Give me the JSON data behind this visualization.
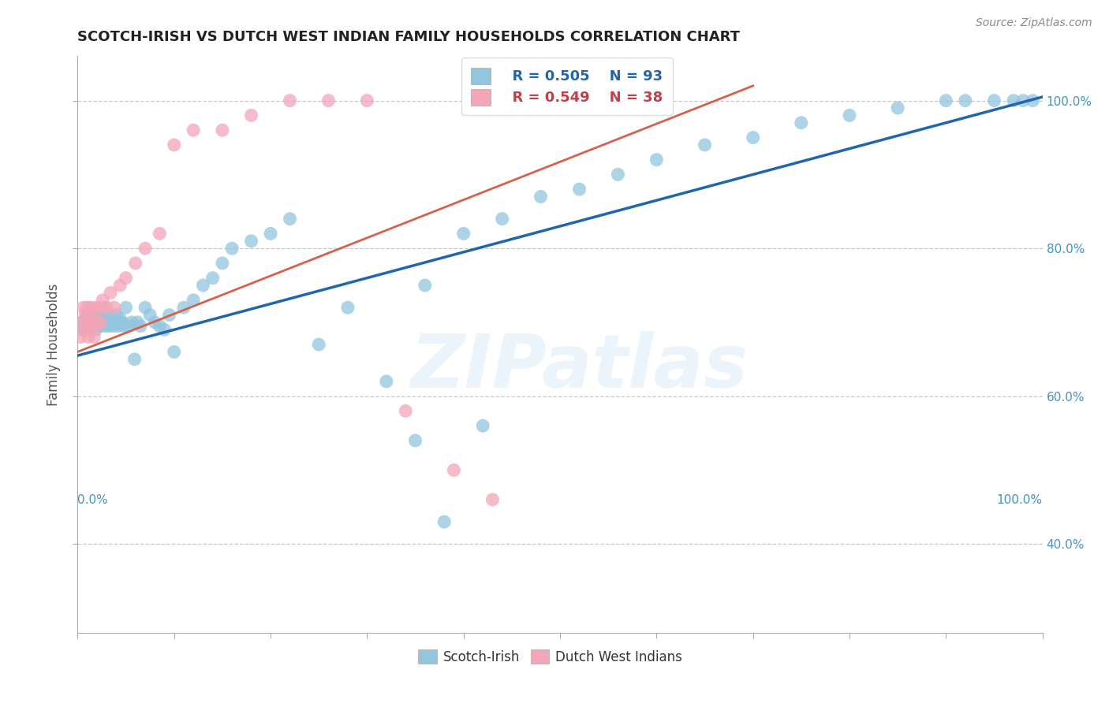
{
  "title": "SCOTCH-IRISH VS DUTCH WEST INDIAN FAMILY HOUSEHOLDS CORRELATION CHART",
  "source": "Source: ZipAtlas.com",
  "ylabel": "Family Households",
  "watermark": "ZIPatlas",
  "legend_blue_r": "R = 0.505",
  "legend_blue_n": "N = 93",
  "legend_pink_r": "R = 0.549",
  "legend_pink_n": "N = 38",
  "legend_label_blue": "Scotch-Irish",
  "legend_label_pink": "Dutch West Indians",
  "blue_color": "#92c5de",
  "pink_color": "#f4a5b8",
  "blue_line_color": "#2166ac",
  "pink_line_color": "#d6604d",
  "background_color": "#ffffff",
  "grid_color": "#c8c8c8",
  "right_tick_color": "#4393c3",
  "scotch_irish_x": [
    0.003,
    0.004,
    0.005,
    0.006,
    0.007,
    0.008,
    0.009,
    0.01,
    0.01,
    0.011,
    0.012,
    0.012,
    0.013,
    0.014,
    0.014,
    0.015,
    0.015,
    0.016,
    0.016,
    0.017,
    0.017,
    0.018,
    0.018,
    0.019,
    0.019,
    0.02,
    0.021,
    0.021,
    0.022,
    0.023,
    0.024,
    0.025,
    0.026,
    0.027,
    0.028,
    0.029,
    0.03,
    0.032,
    0.033,
    0.035,
    0.037,
    0.038,
    0.04,
    0.042,
    0.044,
    0.046,
    0.048,
    0.05,
    0.053,
    0.056,
    0.059,
    0.062,
    0.065,
    0.07,
    0.075,
    0.08,
    0.085,
    0.09,
    0.095,
    0.1,
    0.11,
    0.12,
    0.13,
    0.14,
    0.15,
    0.16,
    0.18,
    0.2,
    0.22,
    0.25,
    0.28,
    0.32,
    0.36,
    0.4,
    0.44,
    0.48,
    0.52,
    0.56,
    0.6,
    0.65,
    0.7,
    0.75,
    0.8,
    0.85,
    0.9,
    0.92,
    0.95,
    0.97,
    0.98,
    0.99,
    0.35,
    0.38,
    0.42
  ],
  "scotch_irish_y": [
    0.695,
    0.7,
    0.69,
    0.695,
    0.7,
    0.695,
    0.705,
    0.7,
    0.71,
    0.7,
    0.695,
    0.705,
    0.7,
    0.695,
    0.71,
    0.7,
    0.69,
    0.695,
    0.705,
    0.7,
    0.71,
    0.695,
    0.705,
    0.7,
    0.69,
    0.695,
    0.7,
    0.71,
    0.7,
    0.705,
    0.695,
    0.7,
    0.72,
    0.7,
    0.71,
    0.695,
    0.7,
    0.71,
    0.695,
    0.7,
    0.695,
    0.7,
    0.71,
    0.695,
    0.705,
    0.7,
    0.695,
    0.72,
    0.695,
    0.7,
    0.65,
    0.7,
    0.695,
    0.72,
    0.71,
    0.7,
    0.695,
    0.69,
    0.71,
    0.66,
    0.72,
    0.73,
    0.75,
    0.76,
    0.78,
    0.8,
    0.81,
    0.82,
    0.84,
    0.67,
    0.72,
    0.62,
    0.75,
    0.82,
    0.84,
    0.87,
    0.88,
    0.9,
    0.92,
    0.94,
    0.95,
    0.97,
    0.98,
    0.99,
    1.0,
    1.0,
    1.0,
    1.0,
    1.0,
    1.0,
    0.54,
    0.43,
    0.56
  ],
  "dutch_x": [
    0.003,
    0.005,
    0.006,
    0.007,
    0.008,
    0.009,
    0.01,
    0.011,
    0.012,
    0.013,
    0.014,
    0.015,
    0.016,
    0.017,
    0.018,
    0.019,
    0.02,
    0.022,
    0.024,
    0.026,
    0.03,
    0.034,
    0.038,
    0.044,
    0.05,
    0.06,
    0.07,
    0.085,
    0.1,
    0.12,
    0.15,
    0.18,
    0.22,
    0.26,
    0.3,
    0.34,
    0.39,
    0.43
  ],
  "dutch_y": [
    0.68,
    0.7,
    0.72,
    0.69,
    0.71,
    0.7,
    0.72,
    0.68,
    0.7,
    0.72,
    0.69,
    0.71,
    0.7,
    0.68,
    0.72,
    0.695,
    0.7,
    0.72,
    0.7,
    0.73,
    0.72,
    0.74,
    0.72,
    0.75,
    0.76,
    0.78,
    0.8,
    0.82,
    0.94,
    0.96,
    0.96,
    0.98,
    1.0,
    1.0,
    1.0,
    0.58,
    0.5,
    0.46
  ],
  "blue_line_x": [
    0.0,
    1.0
  ],
  "blue_line_y": [
    0.655,
    1.005
  ],
  "pink_line_x": [
    0.0,
    0.7
  ],
  "pink_line_y": [
    0.66,
    1.02
  ],
  "xlim": [
    0.0,
    1.0
  ],
  "ylim": [
    0.28,
    1.06
  ],
  "right_yticks": [
    0.4,
    0.6,
    0.8,
    1.0
  ],
  "right_yticklabels": [
    "40.0%",
    "60.0%",
    "80.0%",
    "100.0%"
  ]
}
